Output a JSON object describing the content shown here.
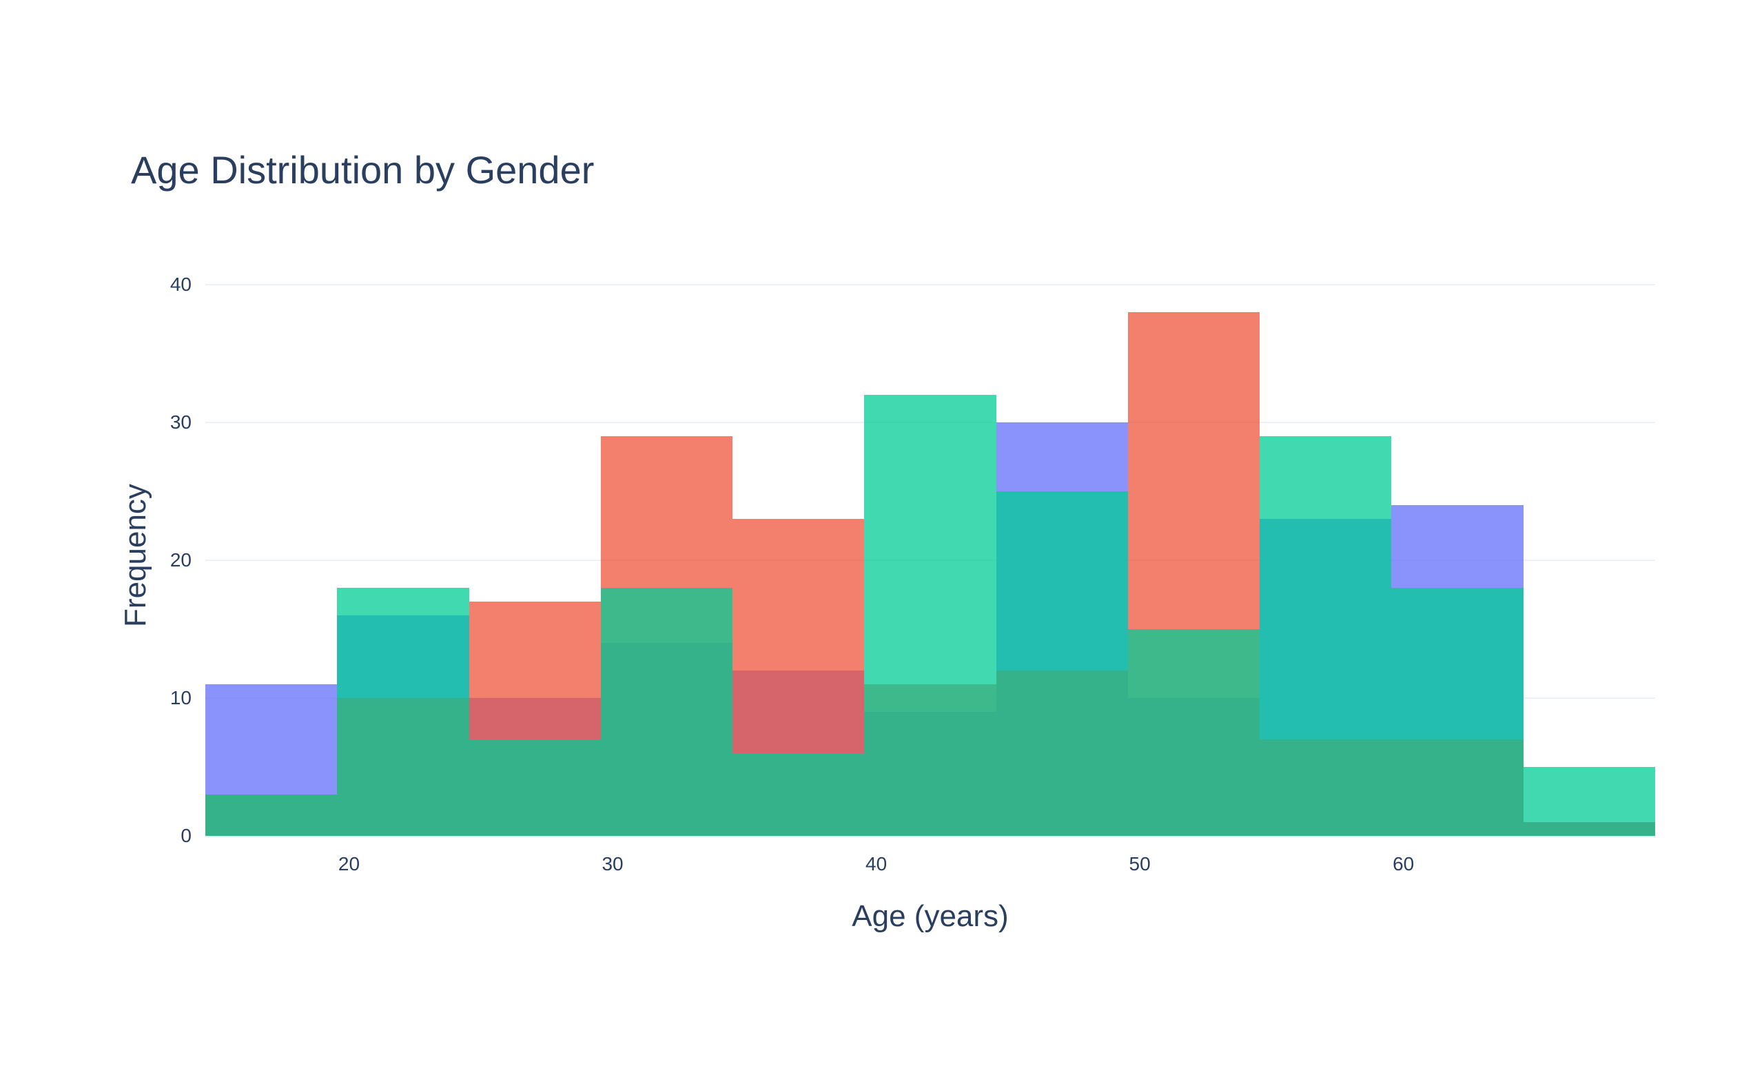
{
  "title": "Age Distribution by Gender",
  "x_axis": {
    "label": "Age (years)",
    "ticks": [
      "20",
      "30",
      "40",
      "50",
      "60"
    ]
  },
  "y_axis": {
    "label": "Frequency",
    "ticks": [
      "0",
      "10",
      "20",
      "30",
      "40"
    ]
  },
  "colors": {
    "text": "#2a3f5f",
    "grid": "#ebf0f8",
    "background": "#ffffff"
  },
  "chart_data": {
    "type": "bar",
    "subtype": "overlaid-histogram",
    "title": "Age Distribution by Gender",
    "xlabel": "Age (years)",
    "ylabel": "Frequency",
    "bin_width_years": 5,
    "bin_starts": [
      15,
      20,
      25,
      30,
      35,
      40,
      45,
      50,
      55,
      60,
      65
    ],
    "categories": [
      "15-20",
      "20-25",
      "25-30",
      "30-35",
      "35-40",
      "40-45",
      "45-50",
      "50-55",
      "55-60",
      "60-65",
      "65-70"
    ],
    "xlim": [
      14.55,
      69.55
    ],
    "ylim": [
      0,
      40.65
    ],
    "x_tick_values": [
      20,
      30,
      40,
      50,
      60
    ],
    "y_tick_values": [
      0,
      10,
      20,
      30,
      40
    ],
    "grid": true,
    "legend_position": "none",
    "draw_order_note": "purple drawn first, then red, then green on top; all 0.75 opacity on white",
    "series": [
      {
        "name": "series-purple",
        "color": "#636EFA",
        "opacity": 0.75,
        "values": [
          11,
          16,
          10,
          14,
          12,
          9,
          30,
          10,
          23,
          24,
          1
        ]
      },
      {
        "name": "series-red",
        "color": "#EF553B",
        "opacity": 0.75,
        "values": [
          3,
          10,
          17,
          29,
          23,
          11,
          12,
          38,
          7,
          7,
          1
        ]
      },
      {
        "name": "series-green",
        "color": "#00CC96",
        "opacity": 0.75,
        "values": [
          3,
          18,
          7,
          18,
          6,
          32,
          25,
          15,
          29,
          18,
          5
        ]
      }
    ]
  }
}
